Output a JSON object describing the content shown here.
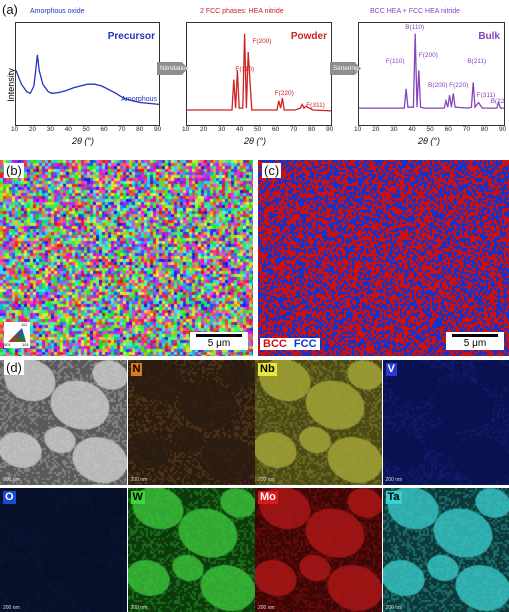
{
  "panel_labels": {
    "a": "(a)",
    "b": "(b)",
    "c": "(c)",
    "d": "(d)"
  },
  "ylabel": "Intensity",
  "xlabel": "2θ (°)",
  "xticks": [
    "10",
    "20",
    "30",
    "40",
    "50",
    "60",
    "70",
    "80",
    "90"
  ],
  "arrows": [
    "Nitridation",
    "Sintering"
  ],
  "plots": [
    {
      "title": "Amorphous oxide",
      "tag": "Precursor",
      "color": "#2233bb",
      "annotation": "Amorphous",
      "peaks": []
    },
    {
      "title": "2 FCC phases: HEA nitride",
      "tag": "Powder",
      "color": "#cc2222",
      "peaks": [
        "F(110)",
        "F(200)",
        "F(220)",
        "F(311)"
      ]
    },
    {
      "title": "BCC HEA + FCC HEA nitride",
      "tag": "Bulk",
      "color": "#8844bb",
      "peaks": [
        "B(110)",
        "F(110)",
        "F(200)",
        "B(200)",
        "F(220)",
        "B(211)",
        "F(311)",
        "B(220)"
      ]
    }
  ],
  "colors": {
    "blue": "#2233bb",
    "red": "#cc2222",
    "purple": "#8844bb",
    "bcc": "#cc1111",
    "fcc": "#1133cc"
  },
  "chart_data": [
    {
      "type": "line",
      "title": "Amorphous oxide",
      "xlabel": "2θ (°)",
      "ylabel": "Intensity",
      "xlim": [
        10,
        90
      ],
      "series": [
        {
          "name": "Precursor",
          "x": [
            10,
            13,
            16,
            18,
            20,
            21,
            22,
            23,
            25,
            28,
            30,
            34,
            38,
            42,
            46,
            50,
            54,
            58,
            62,
            66,
            70,
            75,
            80,
            85,
            90
          ],
          "y": [
            0.55,
            0.4,
            0.32,
            0.3,
            0.38,
            0.55,
            0.72,
            0.55,
            0.4,
            0.32,
            0.3,
            0.31,
            0.33,
            0.36,
            0.38,
            0.4,
            0.4,
            0.38,
            0.34,
            0.3,
            0.25,
            0.22,
            0.2,
            0.19,
            0.18
          ]
        }
      ]
    },
    {
      "type": "line",
      "title": "2 FCC phases: HEA nitride",
      "xlabel": "2θ (°)",
      "xlim": [
        10,
        90
      ],
      "series": [
        {
          "name": "Powder",
          "x": [
            10,
            30,
            35,
            36,
            37,
            38,
            39,
            41,
            42,
            43,
            44,
            46,
            55,
            60,
            61,
            62,
            63,
            64,
            70,
            73,
            74,
            75,
            76,
            80,
            90
          ],
          "y": [
            0.12,
            0.12,
            0.12,
            0.45,
            0.14,
            0.55,
            0.14,
            0.14,
            0.95,
            0.14,
            0.75,
            0.12,
            0.12,
            0.12,
            0.22,
            0.14,
            0.25,
            0.12,
            0.12,
            0.14,
            0.18,
            0.14,
            0.16,
            0.12,
            0.11
          ]
        }
      ]
    },
    {
      "type": "line",
      "title": "BCC HEA + FCC HEA nitride",
      "xlabel": "2θ (°)",
      "xlim": [
        10,
        90
      ],
      "series": [
        {
          "name": "Bulk",
          "x": [
            10,
            30,
            35,
            36,
            37,
            38,
            40,
            41,
            42,
            43,
            44,
            46,
            57,
            58,
            59,
            60,
            61,
            62,
            63,
            70,
            72,
            73,
            74,
            76,
            78,
            86,
            87,
            88,
            90
          ],
          "y": [
            0.14,
            0.14,
            0.14,
            0.35,
            0.15,
            0.15,
            0.15,
            0.95,
            0.15,
            0.55,
            0.15,
            0.14,
            0.14,
            0.22,
            0.15,
            0.28,
            0.15,
            0.3,
            0.15,
            0.14,
            0.15,
            0.42,
            0.15,
            0.2,
            0.14,
            0.14,
            0.2,
            0.14,
            0.14
          ]
        }
      ]
    }
  ],
  "ebsd": {
    "scale": "5 μm",
    "legend_corners": [
      "001",
      "101",
      "111"
    ]
  },
  "phase_map": {
    "scale": "5 μm",
    "bcc": "BCC",
    "fcc": "FCC",
    "bcc_color": "#cc1111",
    "fcc_color": "#1133cc"
  },
  "eds": {
    "scale": "200 nm",
    "maps": [
      {
        "tag": "",
        "bg": "#5a5a5a",
        "fg": "#cfcfcf",
        "tagbg": "",
        "tagfg": ""
      },
      {
        "tag": "N",
        "bg": "#2a1c10",
        "fg": "#8c5a24",
        "tagbg": "#e07a18",
        "tagfg": "#000"
      },
      {
        "tag": "Nb",
        "bg": "#4a4a16",
        "fg": "#a8a83a",
        "tagbg": "#e8e83a",
        "tagfg": "#000"
      },
      {
        "tag": "V",
        "bg": "#0a1250",
        "fg": "#1c2c9c",
        "tagbg": "#2a3ad8",
        "tagfg": "#fff"
      },
      {
        "tag": "O",
        "bg": "#061028",
        "fg": "#0c1c48",
        "tagbg": "#1a4ad0",
        "tagfg": "#fff"
      },
      {
        "tag": "W",
        "bg": "#0c3a0c",
        "fg": "#3cc43c",
        "tagbg": "#3ad63a",
        "tagfg": "#000"
      },
      {
        "tag": "Mo",
        "bg": "#3a0606",
        "fg": "#b01818",
        "tagbg": "#d81a1a",
        "tagfg": "#fff"
      },
      {
        "tag": "Ta",
        "bg": "#0c3838",
        "fg": "#3ac8c8",
        "tagbg": "#3ad0d0",
        "tagfg": "#000"
      }
    ]
  }
}
